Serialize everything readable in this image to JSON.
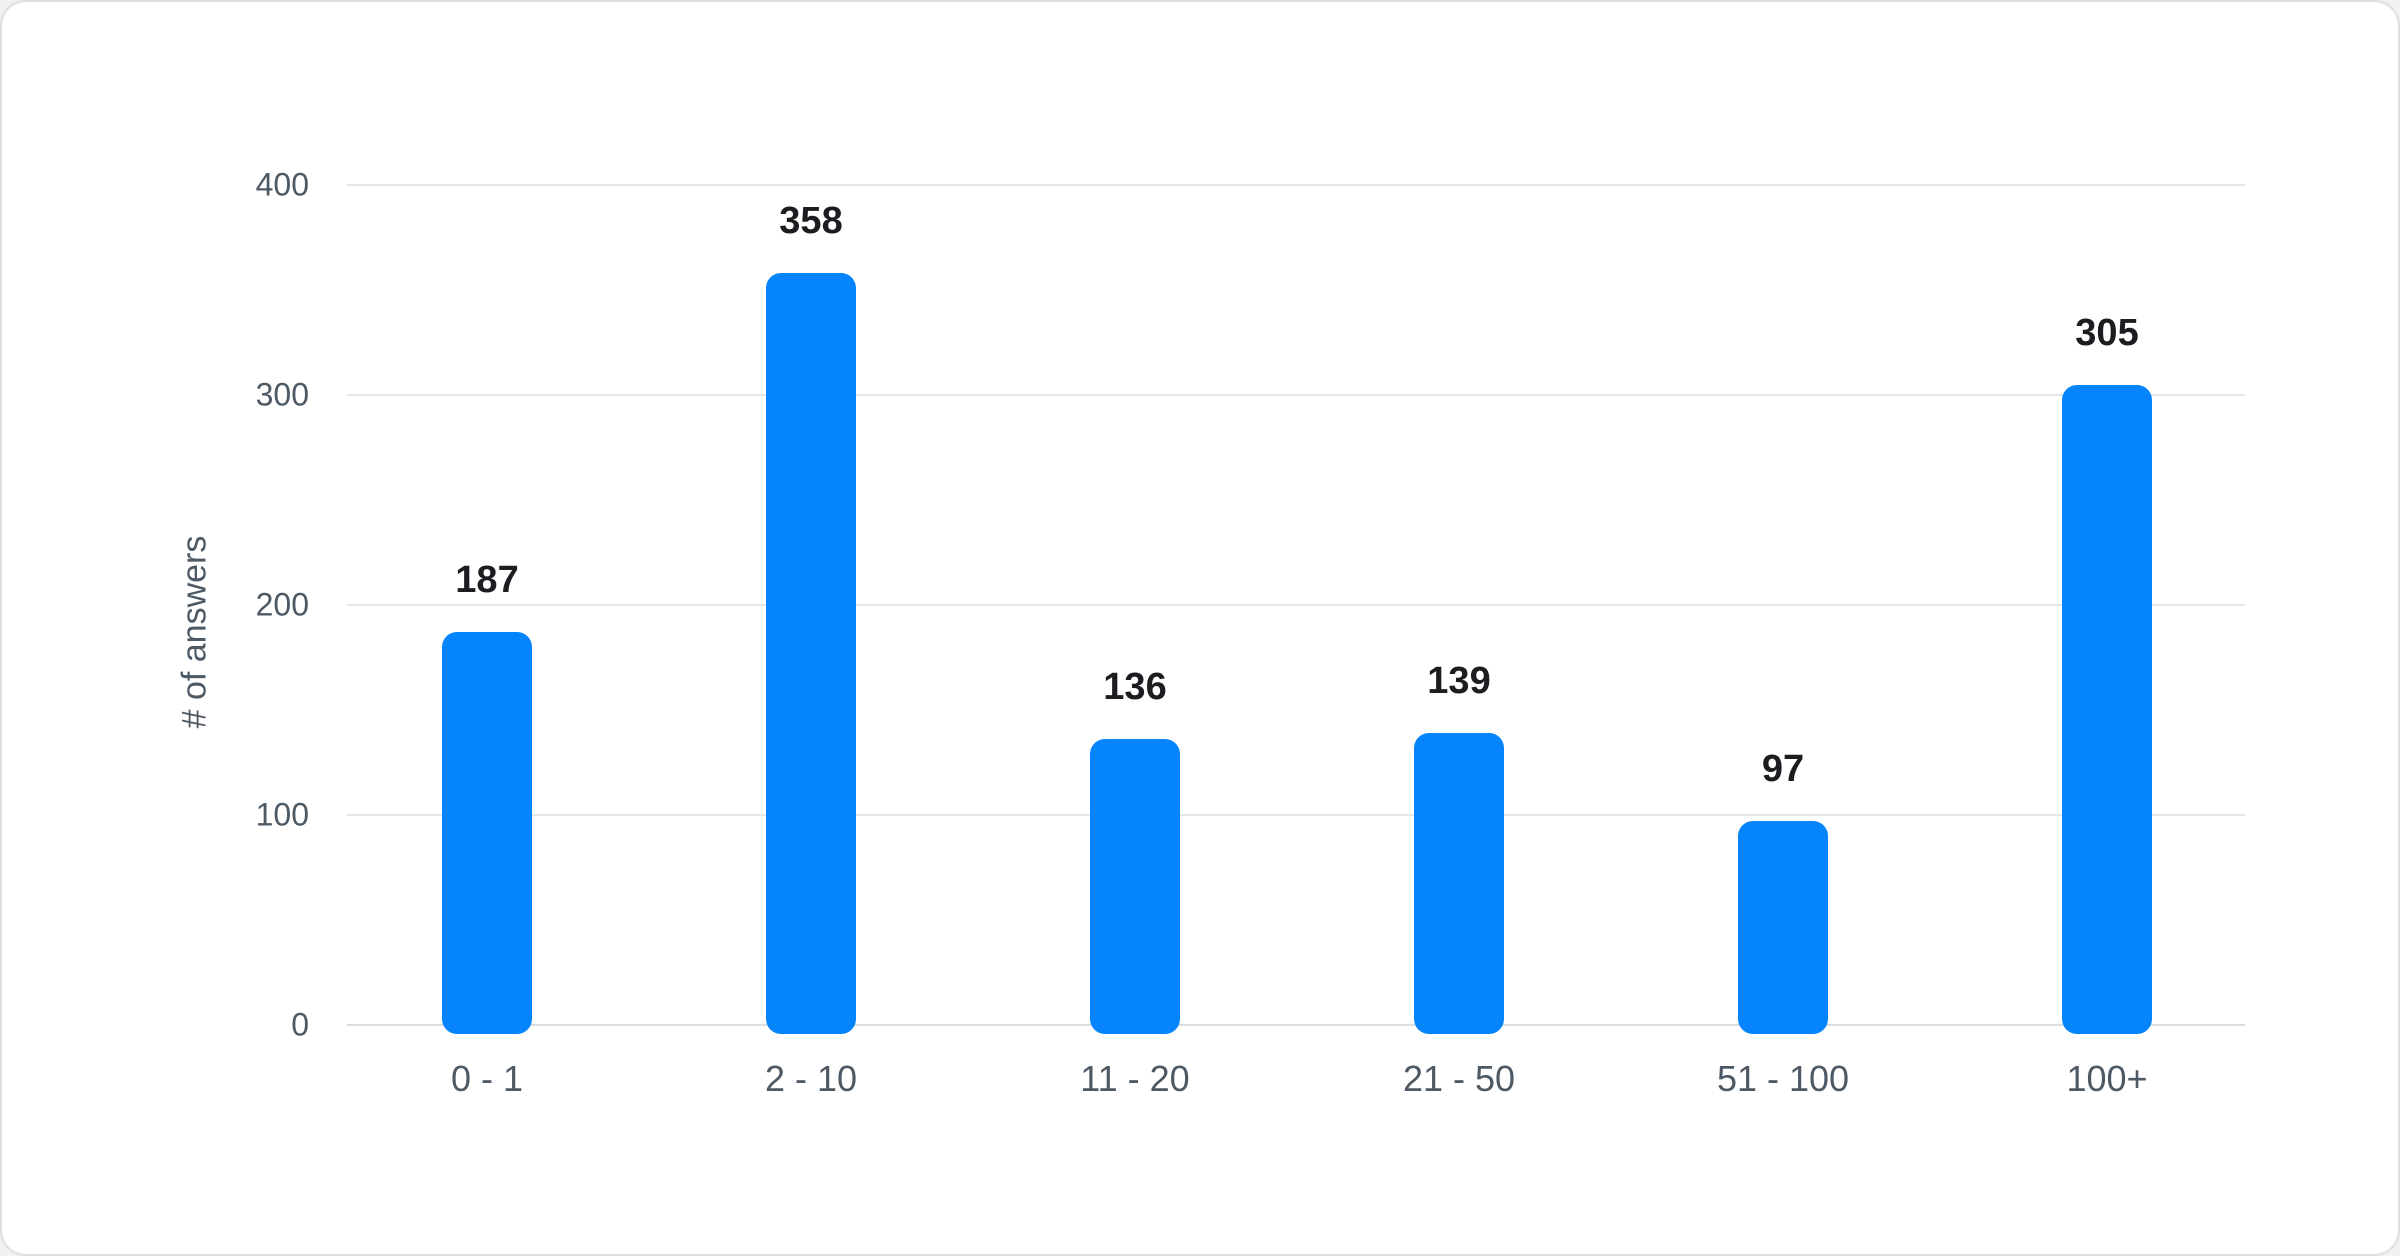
{
  "chart_data": {
    "type": "bar",
    "title": "",
    "xlabel": "",
    "ylabel": "# of answers",
    "categories": [
      "0 - 1",
      "2 - 10",
      "11 - 20",
      "21 - 50",
      "51 - 100",
      "100+"
    ],
    "values": [
      187,
      358,
      136,
      139,
      97,
      305
    ],
    "ylim": [
      0,
      400
    ],
    "yticks": [
      0,
      100,
      200,
      300,
      400
    ],
    "grid": true,
    "legend": false,
    "value_labels_shown": true,
    "colors": {
      "bar": "#0684fc",
      "value_label": "#1b1d20",
      "axis_text": "#4d5965",
      "gridline": "#e4e7e9",
      "zero_line": "#d9dde0",
      "card_background": "#ffffff",
      "page_background": "#eff1f3",
      "card_border": "#dde1e4"
    }
  }
}
